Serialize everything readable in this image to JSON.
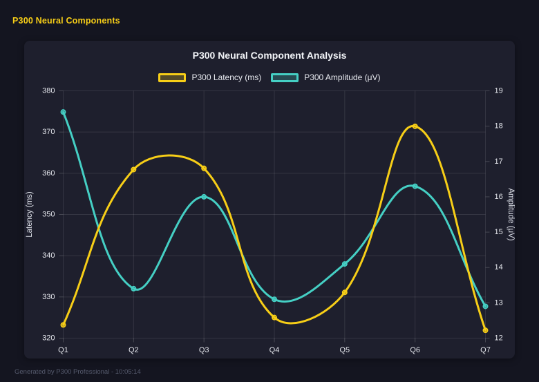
{
  "app": {
    "header": "P300 Neural Components",
    "footer": "Generated by P300 Professional - 10:05:14"
  },
  "colors": {
    "page_bg": "#141520",
    "panel_bg": "#1e1f2d",
    "header_accent": "#f7ce17",
    "grid": "rgba(255,255,255,0.10)",
    "tick_mark": "rgba(255,255,255,0.18)",
    "tick_text": "#e6e8ee",
    "axis_title_text": "#dde0e8"
  },
  "chart_data": {
    "type": "line",
    "title": "P300 Neural Component Analysis",
    "smooth": true,
    "tension": 0.4,
    "grid": true,
    "legend_position": "top",
    "categories": [
      "Q1",
      "Q2",
      "Q3",
      "Q4",
      "Q5",
      "Q6",
      "Q7"
    ],
    "series": [
      {
        "name": "P300 Latency (ms)",
        "axis": "left",
        "color": "#f7ce17",
        "values": [
          323.2,
          360.9,
          361.2,
          325.0,
          331.1,
          371.4,
          321.9
        ]
      },
      {
        "name": "P300 Amplitude (μV)",
        "axis": "right",
        "color": "#45cfc4",
        "values": [
          18.4,
          13.4,
          16.0,
          13.1,
          14.1,
          16.3,
          12.9
        ]
      }
    ],
    "left_axis": {
      "label": "Latency (ms)",
      "min": 320,
      "max": 380,
      "step": 10,
      "ticks": [
        "320",
        "330",
        "340",
        "350",
        "360",
        "370",
        "380"
      ]
    },
    "right_axis": {
      "label": "Amplitude (μV)",
      "min": 12,
      "max": 19,
      "step": 1,
      "ticks": [
        "12",
        "13",
        "14",
        "15",
        "16",
        "17",
        "18",
        "19"
      ]
    }
  }
}
